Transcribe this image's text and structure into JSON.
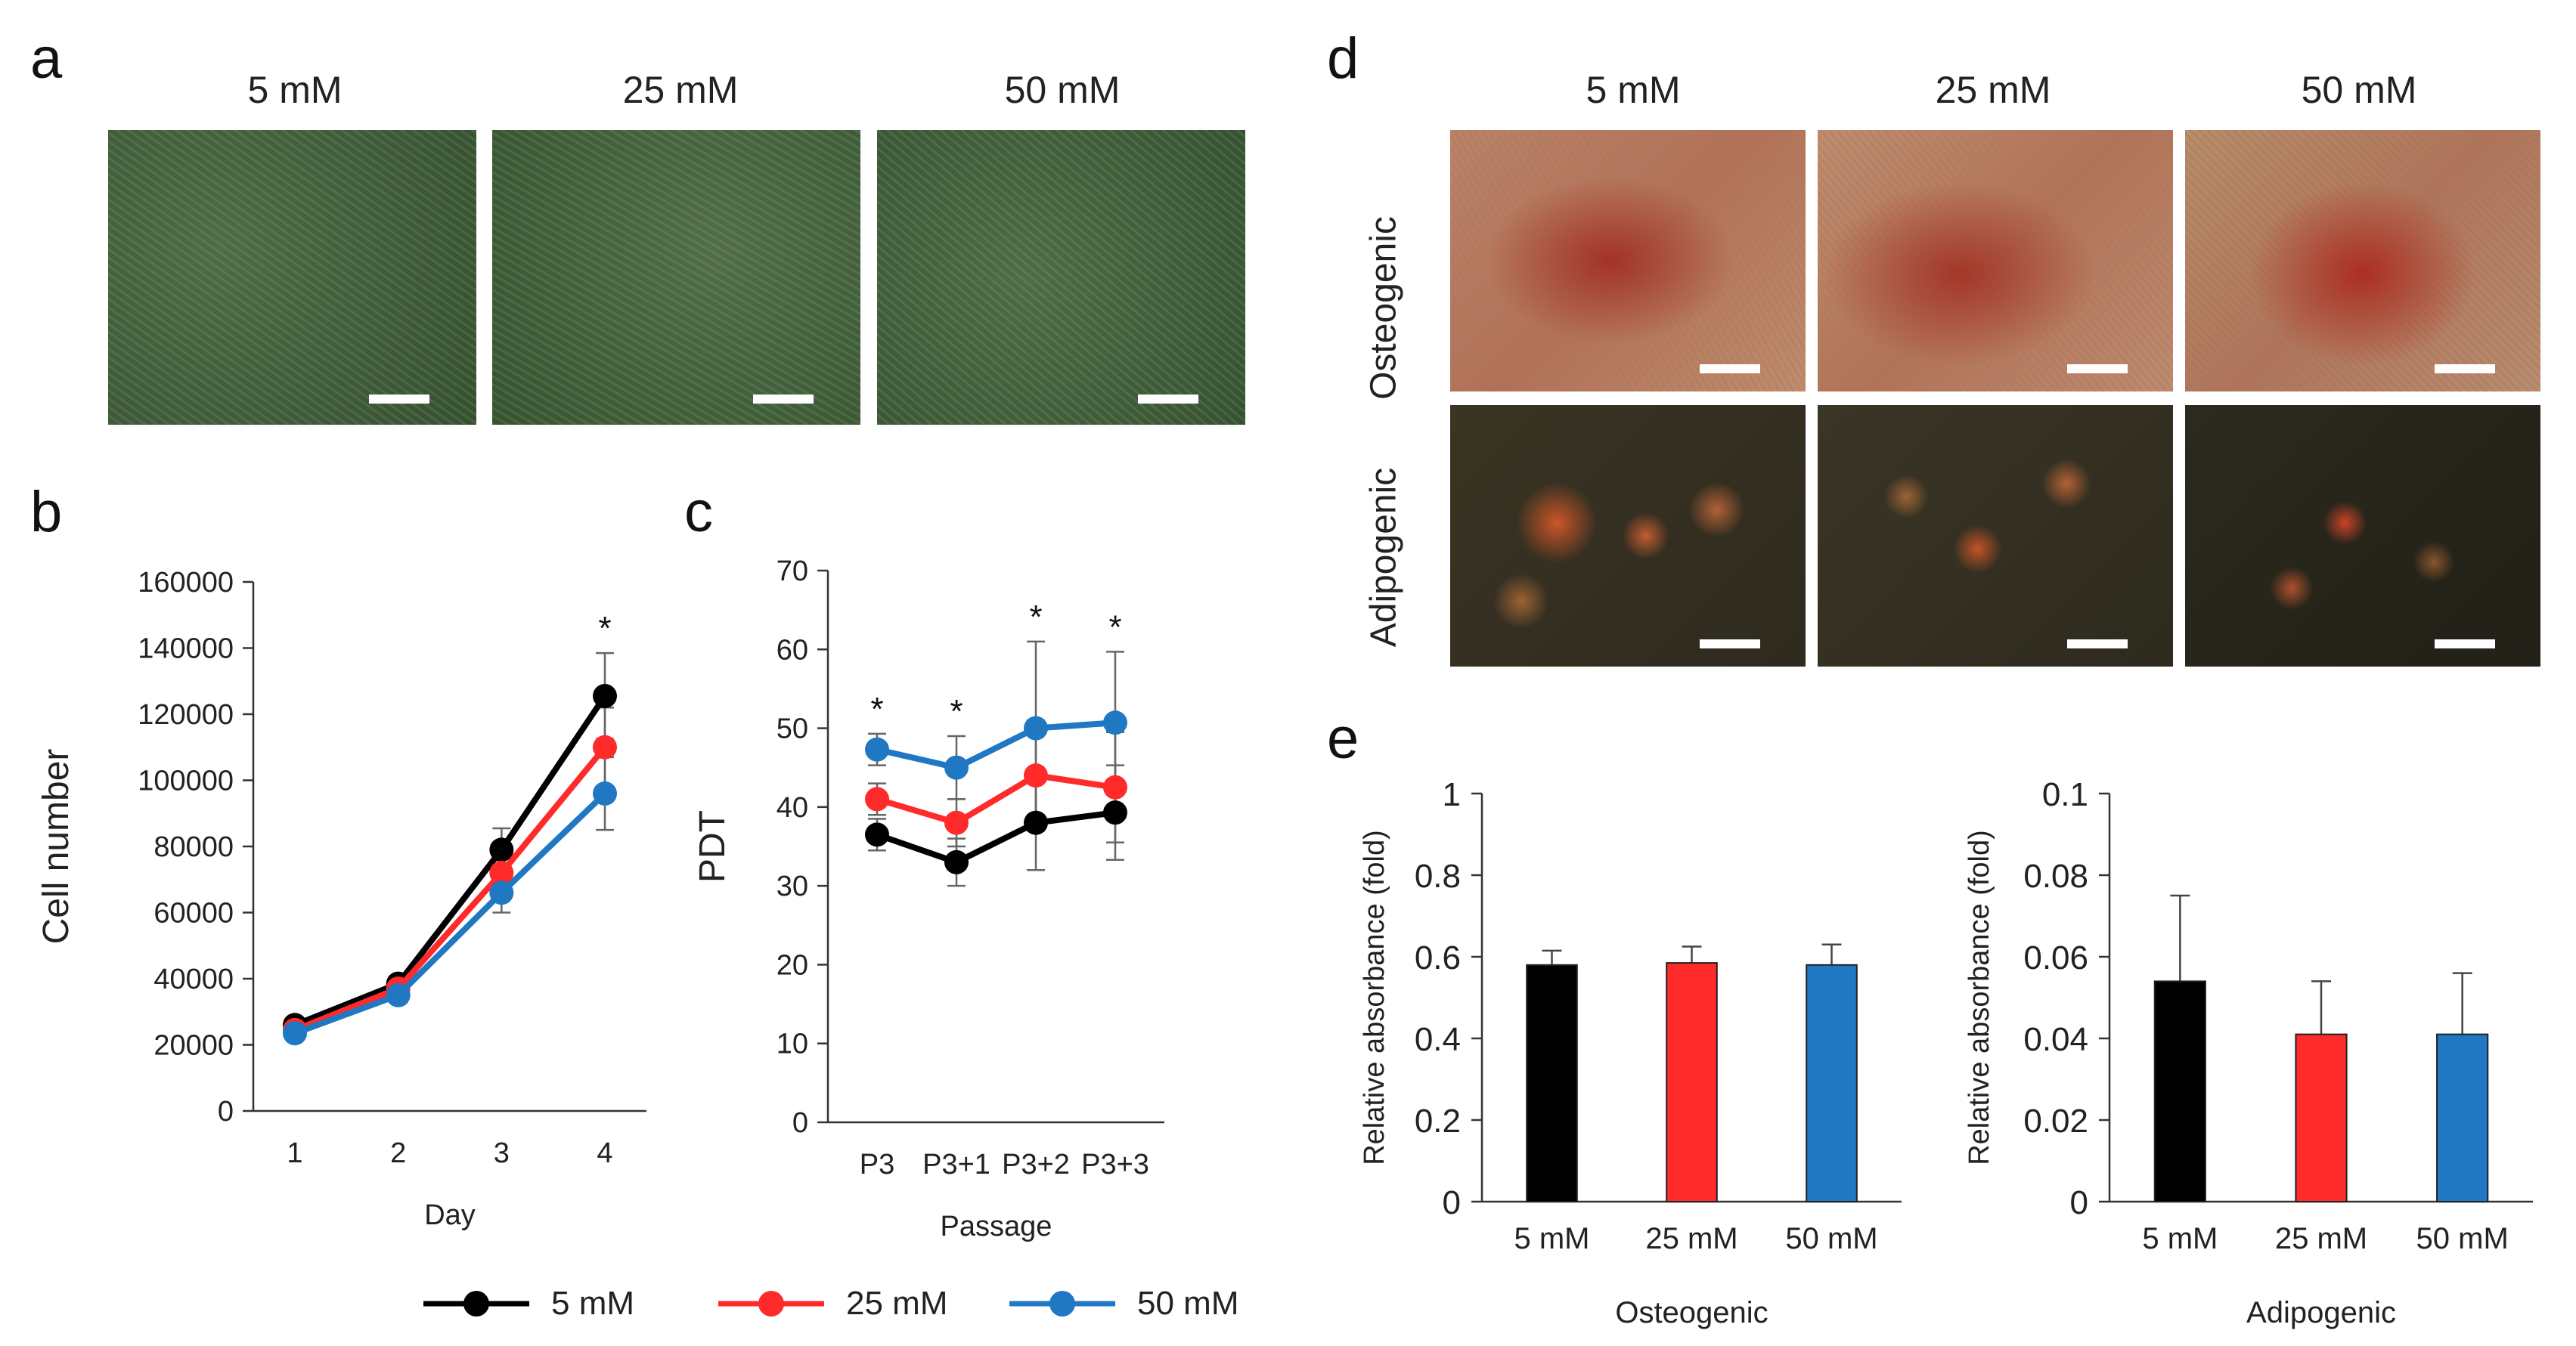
{
  "panel_letters": {
    "a": "a",
    "b": "b",
    "c": "c",
    "d": "d",
    "e": "e"
  },
  "concentrations": [
    "5 mM",
    "25 mM",
    "50 mM"
  ],
  "row_labels": {
    "osteogenic": "Osteogenic",
    "adipogenic": "Adipogenic"
  },
  "colors": {
    "c5": "#000000",
    "c25": "#ff2a2a",
    "c50": "#1f78c1"
  },
  "legend": [
    {
      "label": "5 mM",
      "color": "#000000"
    },
    {
      "label": "25 mM",
      "color": "#ff2a2a"
    },
    {
      "label": "50 mM",
      "color": "#1f78c1"
    }
  ],
  "chart_data": [
    {
      "id": "b",
      "type": "line",
      "xlabel": "Day",
      "ylabel": "Cell number",
      "categories": [
        "1",
        "2",
        "3",
        "4"
      ],
      "ylim": [
        0,
        160000
      ],
      "yticks": [
        "0",
        "20000",
        "40000",
        "60000",
        "80000",
        "100000",
        "120000",
        "140000",
        "160000"
      ],
      "series": [
        {
          "name": "5 mM",
          "values": [
            26000,
            38500,
            79000,
            125500
          ],
          "errors": [
            1000,
            1500,
            6500,
            13000
          ]
        },
        {
          "name": "25 mM",
          "values": [
            24500,
            37000,
            72000,
            110000
          ],
          "errors": [
            1000,
            1500,
            6000,
            12000
          ]
        },
        {
          "name": "50 mM",
          "values": [
            23500,
            35000,
            66000,
            96000
          ],
          "errors": [
            1000,
            1500,
            6000,
            11000
          ]
        }
      ],
      "significance": [
        "",
        "",
        "",
        "*"
      ]
    },
    {
      "id": "c",
      "type": "line",
      "xlabel": "Passage",
      "ylabel": "PDT",
      "categories": [
        "P3",
        "P3+1",
        "P3+2",
        "P3+3"
      ],
      "ylim": [
        0,
        70
      ],
      "yticks": [
        "0",
        "10",
        "20",
        "30",
        "40",
        "50",
        "60",
        "70"
      ],
      "series": [
        {
          "name": "5 mM",
          "values": [
            36.5,
            33,
            38,
            39.3
          ],
          "errors": [
            2,
            3,
            6,
            6
          ]
        },
        {
          "name": "25 mM",
          "values": [
            41,
            38,
            44,
            42.5
          ],
          "errors": [
            2,
            3,
            7,
            7
          ]
        },
        {
          "name": "50 mM",
          "values": [
            47.3,
            45,
            50,
            50.7
          ],
          "errors": [
            2,
            4,
            11,
            9
          ]
        }
      ],
      "significance": [
        "*",
        "*",
        "*",
        "*"
      ]
    },
    {
      "id": "e-osteogenic",
      "type": "bar",
      "xlabel": "Osteogenic",
      "ylabel": "Relative absorbance (fold)",
      "categories": [
        "5 mM",
        "25 mM",
        "50 mM"
      ],
      "values": [
        0.58,
        0.585,
        0.58
      ],
      "errors": [
        0.035,
        0.04,
        0.05
      ],
      "ylim": [
        0,
        1
      ],
      "yticks": [
        "0",
        "0.2",
        "0.4",
        "0.6",
        "0.8",
        "1"
      ]
    },
    {
      "id": "e-adipogenic",
      "type": "bar",
      "xlabel": "Adipogenic",
      "ylabel": "Relative absorbance (fold)",
      "categories": [
        "5 mM",
        "25 mM",
        "50 mM"
      ],
      "values": [
        0.054,
        0.041,
        0.041
      ],
      "errors": [
        0.021,
        0.013,
        0.015
      ],
      "ylim": [
        0,
        0.1
      ],
      "yticks": [
        "0",
        "0.02",
        "0.04",
        "0.06",
        "0.08",
        "0.1"
      ]
    }
  ]
}
